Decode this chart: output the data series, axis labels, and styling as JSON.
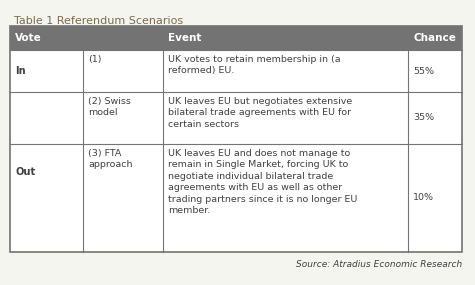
{
  "title": "Table 1 Referendum Scenarios",
  "title_color": "#7a6a4f",
  "header_labels": [
    "Vote",
    "Event",
    "Chance"
  ],
  "header_bg": "#737373",
  "header_text_color": "#ffffff",
  "border_color": "#737373",
  "text_color": "#404040",
  "source_text": "Source: Atradius Economic Research",
  "rows": [
    {
      "vote": "In",
      "scenario": "(1)",
      "event": "UK votes to retain membership in (a\nreformed) EU.",
      "chance": "55%"
    },
    {
      "vote": null,
      "scenario": "(2) Swiss\nmodel",
      "event": "UK leaves EU but negotiates extensive\nbilateral trade agreements with EU for\ncertain sectors",
      "chance": "35%"
    },
    {
      "vote": "Out",
      "scenario": "(3) FTA\napproach",
      "event": "UK leaves EU and does not manage to\nremain in Single Market, forcing UK to\nnegotiate individual bilateral trade\nagreements with EU as well as other\ntrading partners since it is no longer EU\nmember.",
      "chance": "10%"
    }
  ],
  "fig_width": 4.75,
  "fig_height": 2.85,
  "dpi": 100,
  "fig_bg": "#f5f5f0",
  "table_bg": "#ffffff",
  "title_fontsize": 8.0,
  "header_fontsize": 7.5,
  "data_fontsize": 6.8,
  "source_fontsize": 6.5
}
